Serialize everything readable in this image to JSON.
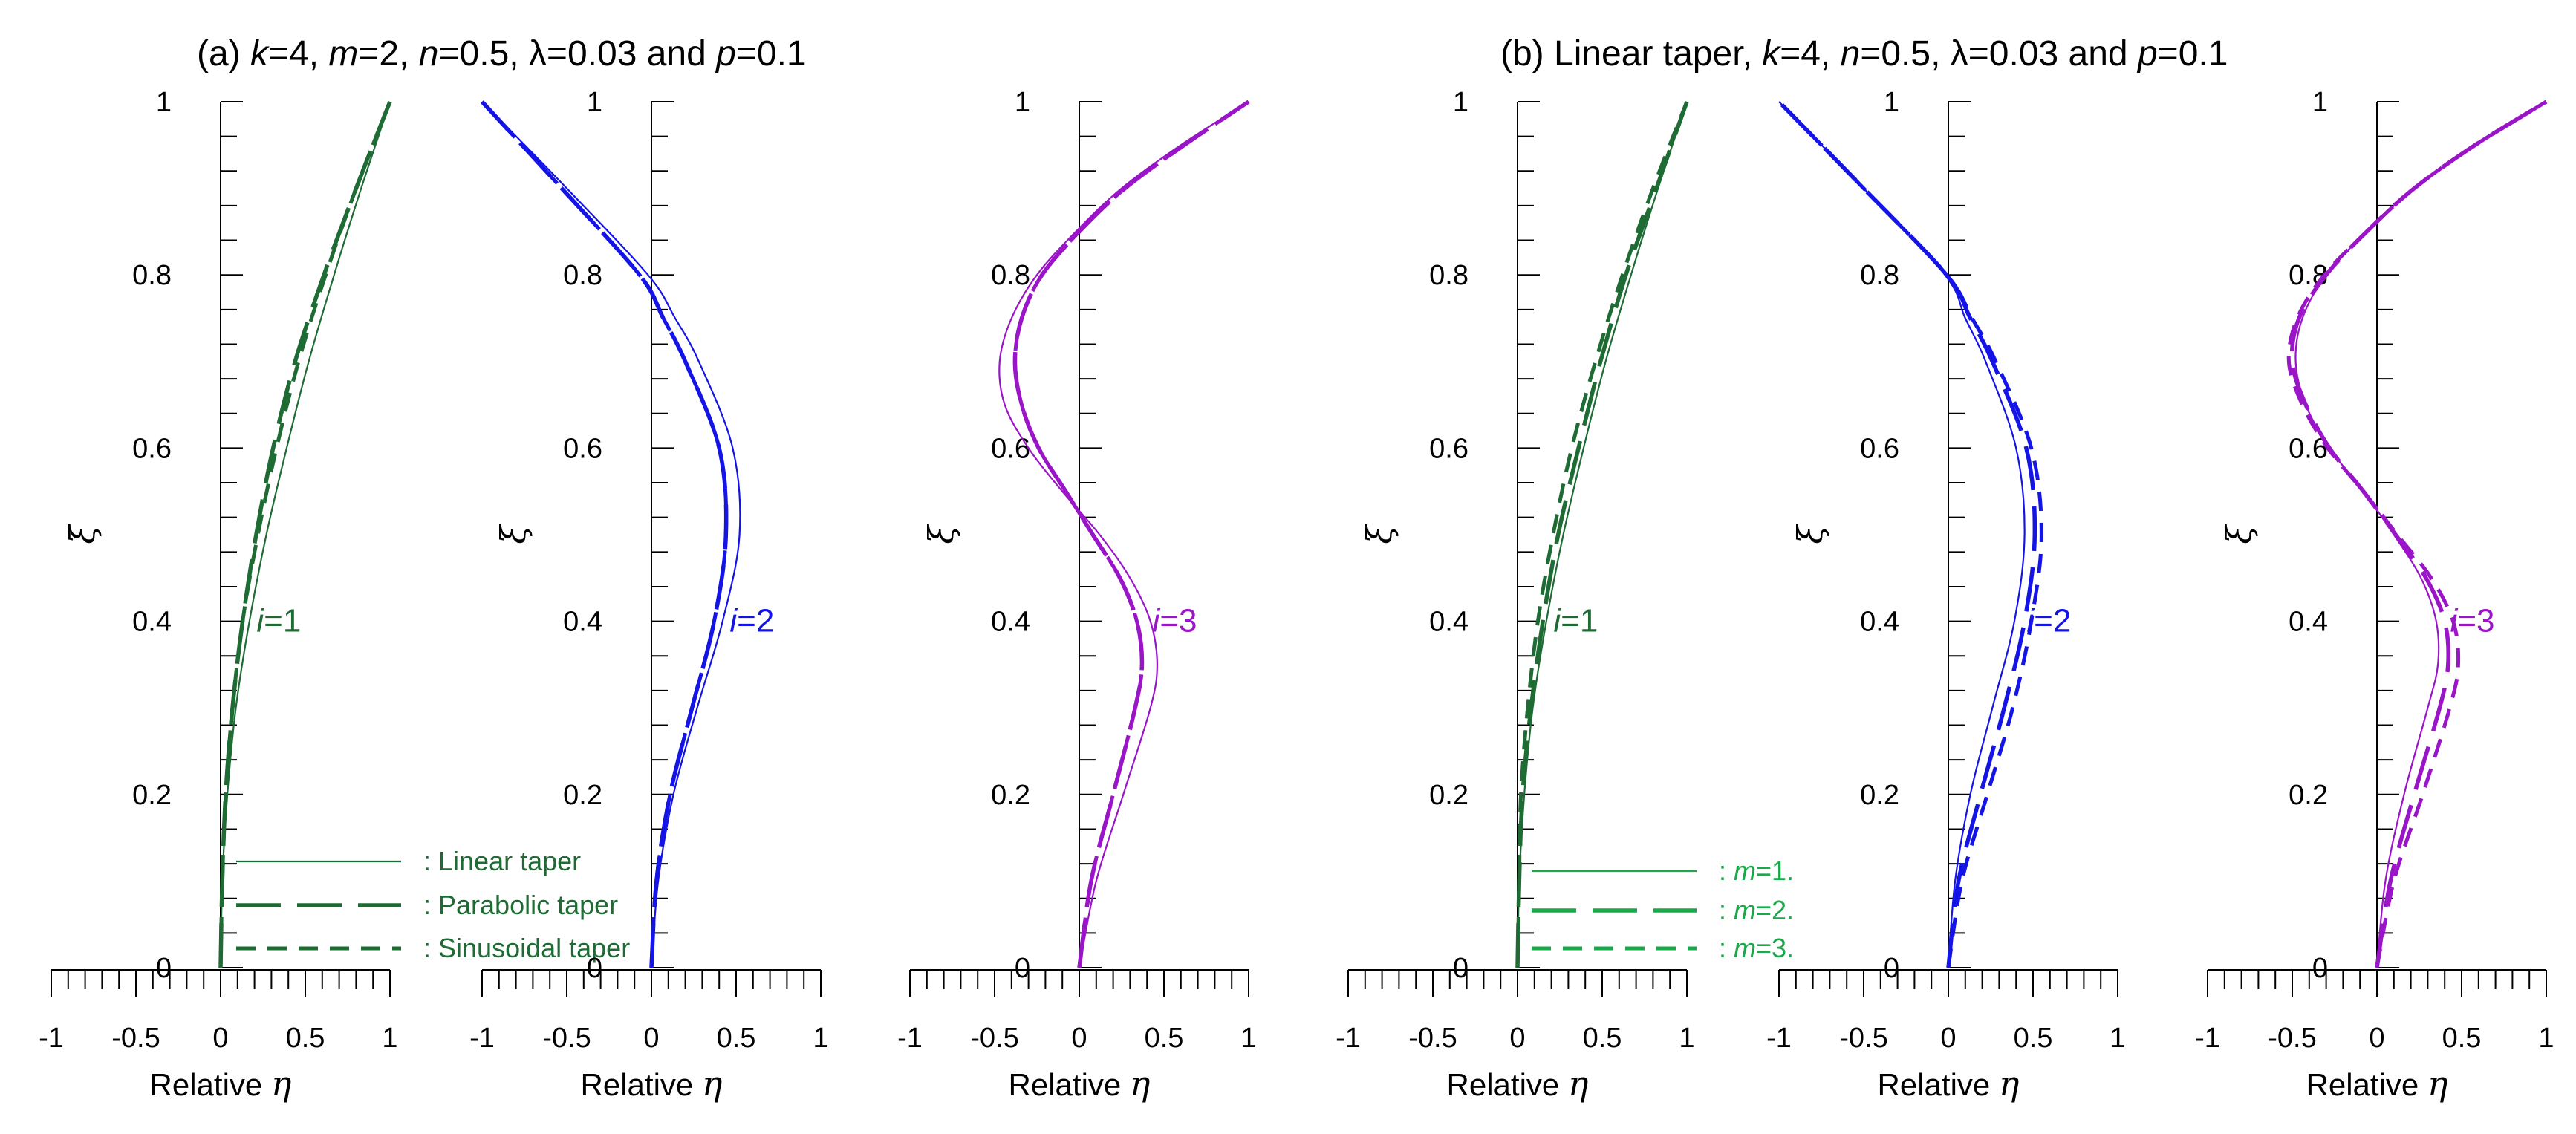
{
  "figure": {
    "title_a": "(a) k=4, m=2, n=0.5, λ=0.03 and p=0.1",
    "title_b": "(b) Linear taper, k=4, n=0.5, λ=0.03 and p=0.1"
  },
  "colors": {
    "mode1": "#1e6b34",
    "mode2": "#1414e6",
    "mode3": "#9a14c8",
    "legend_a_text": "#1e6b34",
    "legend_b_text": "#1aa84a"
  },
  "chart_data": [
    {
      "type": "line",
      "panel": "a",
      "mode_label": "i=1",
      "mode_color": "mode1",
      "xlabel": "Relative η",
      "ylabel": "ξ",
      "xlim": [
        -1,
        1
      ],
      "ylim": [
        0,
        1
      ],
      "x_ticks": [
        "-1",
        "-0.5",
        "0",
        "0.5",
        "1"
      ],
      "y_ticks": [
        "0",
        "0.2",
        "0.4",
        "0.6",
        "0.8",
        "1"
      ],
      "show_y_tick_labels": true,
      "label_anchor": [
        0.3,
        0.4
      ],
      "legend": [
        "Linear taper",
        "Parabolic taper",
        "Sinusoidal taper"
      ],
      "series": [
        {
          "name": "Linear taper",
          "style": "solid",
          "y": [
            0,
            0.1,
            0.2,
            0.3,
            0.4,
            0.5,
            0.6,
            0.7,
            0.8,
            0.9,
            1.0
          ],
          "x": [
            0,
            0.01,
            0.04,
            0.09,
            0.17,
            0.27,
            0.39,
            0.52,
            0.67,
            0.83,
            1.0
          ]
        },
        {
          "name": "Parabolic taper",
          "style": "longdash",
          "y": [
            0,
            0.1,
            0.2,
            0.3,
            0.4,
            0.5,
            0.6,
            0.7,
            0.8,
            0.9,
            1.0
          ],
          "x": [
            0,
            0.01,
            0.03,
            0.07,
            0.13,
            0.21,
            0.31,
            0.44,
            0.61,
            0.8,
            1.0
          ]
        },
        {
          "name": "Sinusoidal taper",
          "style": "shortdash",
          "y": [
            0,
            0.1,
            0.2,
            0.3,
            0.4,
            0.5,
            0.6,
            0.7,
            0.8,
            0.9,
            1.0
          ],
          "x": [
            0,
            0.01,
            0.03,
            0.07,
            0.13,
            0.22,
            0.33,
            0.46,
            0.62,
            0.8,
            1.0
          ]
        }
      ]
    },
    {
      "type": "line",
      "panel": "a",
      "mode_label": "i=2",
      "mode_color": "mode2",
      "xlabel": "Relative η",
      "ylabel": "ξ",
      "xlim": [
        -1,
        1
      ],
      "ylim": [
        0,
        1
      ],
      "x_ticks": [
        "-1",
        "-0.5",
        "0",
        "0.5",
        "1"
      ],
      "y_ticks": [
        "0",
        "0.2",
        "0.4",
        "0.6",
        "0.8",
        "1"
      ],
      "show_y_tick_labels": true,
      "label_anchor": [
        0.55,
        0.4
      ],
      "series": [
        {
          "name": "Linear taper",
          "style": "solid",
          "y": [
            0,
            0.1,
            0.2,
            0.3,
            0.4,
            0.5,
            0.6,
            0.7,
            0.75,
            0.8,
            0.9,
            1.0
          ],
          "x": [
            0,
            0.04,
            0.13,
            0.27,
            0.42,
            0.52,
            0.48,
            0.28,
            0.14,
            -0.02,
            -0.5,
            -1.0
          ]
        },
        {
          "name": "Parabolic taper",
          "style": "longdash",
          "y": [
            0,
            0.1,
            0.2,
            0.3,
            0.4,
            0.5,
            0.6,
            0.7,
            0.75,
            0.8,
            0.9,
            1.0
          ],
          "x": [
            0,
            0.03,
            0.11,
            0.24,
            0.37,
            0.44,
            0.4,
            0.2,
            0.07,
            -0.07,
            -0.53,
            -1.0
          ]
        },
        {
          "name": "Sinusoidal taper",
          "style": "shortdash",
          "y": [
            0,
            0.1,
            0.2,
            0.3,
            0.4,
            0.5,
            0.6,
            0.7,
            0.75,
            0.8,
            0.9,
            1.0
          ],
          "x": [
            0,
            0.03,
            0.11,
            0.24,
            0.37,
            0.44,
            0.4,
            0.2,
            0.07,
            -0.07,
            -0.53,
            -1.0
          ]
        }
      ]
    },
    {
      "type": "line",
      "panel": "a",
      "mode_label": "i=3",
      "mode_color": "mode3",
      "xlabel": "Relative η",
      "ylabel": "ξ",
      "xlim": [
        -1,
        1
      ],
      "ylim": [
        0,
        1
      ],
      "x_ticks": [
        "-1",
        "-0.5",
        "0",
        "0.5",
        "1"
      ],
      "y_ticks": [
        "0",
        "0.2",
        "0.4",
        "0.6",
        "0.8",
        "1"
      ],
      "show_y_tick_labels": true,
      "label_anchor": [
        0.52,
        0.4
      ],
      "series": [
        {
          "name": "Linear taper",
          "style": "solid",
          "y": [
            0,
            0.1,
            0.2,
            0.3,
            0.35,
            0.4,
            0.45,
            0.5,
            0.55,
            0.6,
            0.65,
            0.7,
            0.75,
            0.8,
            0.85,
            0.9,
            0.95,
            1.0
          ],
          "x": [
            0,
            0.1,
            0.26,
            0.42,
            0.46,
            0.42,
            0.3,
            0.12,
            -0.1,
            -0.3,
            -0.44,
            -0.47,
            -0.4,
            -0.25,
            -0.02,
            0.25,
            0.6,
            1.0
          ]
        },
        {
          "name": "Parabolic taper",
          "style": "longdash",
          "y": [
            0,
            0.1,
            0.2,
            0.3,
            0.35,
            0.4,
            0.45,
            0.5,
            0.55,
            0.6,
            0.65,
            0.7,
            0.75,
            0.8,
            0.85,
            0.9,
            0.95,
            1.0
          ],
          "x": [
            0,
            0.07,
            0.2,
            0.33,
            0.37,
            0.34,
            0.24,
            0.08,
            -0.08,
            -0.24,
            -0.34,
            -0.38,
            -0.34,
            -0.22,
            0.0,
            0.27,
            0.62,
            1.0
          ]
        },
        {
          "name": "Sinusoidal taper",
          "style": "shortdash",
          "y": [
            0,
            0.1,
            0.2,
            0.3,
            0.35,
            0.4,
            0.45,
            0.5,
            0.55,
            0.6,
            0.65,
            0.7,
            0.75,
            0.8,
            0.85,
            0.9,
            0.95,
            1.0
          ],
          "x": [
            0,
            0.07,
            0.2,
            0.33,
            0.37,
            0.34,
            0.24,
            0.08,
            -0.08,
            -0.24,
            -0.34,
            -0.38,
            -0.34,
            -0.22,
            0.0,
            0.27,
            0.62,
            1.0
          ]
        }
      ]
    },
    {
      "type": "line",
      "panel": "b",
      "mode_label": "i=1",
      "mode_color": "mode1",
      "xlabel": "Relative η",
      "ylabel": "ξ",
      "xlim": [
        -1,
        1
      ],
      "ylim": [
        0,
        1
      ],
      "x_ticks": [
        "-1",
        "-0.5",
        "0",
        "0.5",
        "1"
      ],
      "y_ticks": [
        "0",
        "0.2",
        "0.4",
        "0.6",
        "0.8",
        "1"
      ],
      "show_y_tick_labels": true,
      "label_anchor": [
        0.3,
        0.4
      ],
      "legend": [
        "m=1.",
        "m=2.",
        "m=3."
      ],
      "series": [
        {
          "name": "m=1.",
          "style": "solid",
          "y": [
            0,
            0.1,
            0.2,
            0.3,
            0.4,
            0.5,
            0.6,
            0.7,
            0.8,
            0.9,
            1.0
          ],
          "x": [
            0,
            0.01,
            0.04,
            0.09,
            0.17,
            0.27,
            0.39,
            0.52,
            0.67,
            0.83,
            1.0
          ]
        },
        {
          "name": "m=2.",
          "style": "longdash",
          "y": [
            0,
            0.1,
            0.2,
            0.3,
            0.4,
            0.5,
            0.6,
            0.7,
            0.8,
            0.9,
            1.0
          ],
          "x": [
            0,
            0.01,
            0.03,
            0.08,
            0.15,
            0.24,
            0.36,
            0.49,
            0.64,
            0.82,
            1.0
          ]
        },
        {
          "name": "m=3.",
          "style": "shortdash",
          "y": [
            0,
            0.1,
            0.2,
            0.3,
            0.4,
            0.5,
            0.6,
            0.7,
            0.8,
            0.9,
            1.0
          ],
          "x": [
            0,
            0.01,
            0.02,
            0.06,
            0.12,
            0.21,
            0.32,
            0.46,
            0.62,
            0.8,
            1.0
          ]
        }
      ]
    },
    {
      "type": "line",
      "panel": "b",
      "mode_label": "i=2",
      "mode_color": "mode2",
      "xlabel": "Relative η",
      "ylabel": "ξ",
      "xlim": [
        -1,
        1
      ],
      "ylim": [
        0,
        1
      ],
      "x_ticks": [
        "-1",
        "-0.5",
        "0",
        "0.5",
        "1"
      ],
      "y_ticks": [
        "0",
        "0.2",
        "0.4",
        "0.6",
        "0.8",
        "1"
      ],
      "show_y_tick_labels": true,
      "label_anchor": [
        0.55,
        0.4
      ],
      "series": [
        {
          "name": "m=1.",
          "style": "solid",
          "y": [
            0,
            0.1,
            0.2,
            0.3,
            0.4,
            0.5,
            0.6,
            0.7,
            0.75,
            0.8,
            0.9,
            1.0
          ],
          "x": [
            0,
            0.04,
            0.13,
            0.26,
            0.39,
            0.45,
            0.4,
            0.22,
            0.1,
            -0.02,
            -0.5,
            -1.0
          ]
        },
        {
          "name": "m=2.",
          "style": "longdash",
          "y": [
            0,
            0.1,
            0.2,
            0.3,
            0.4,
            0.5,
            0.6,
            0.7,
            0.75,
            0.8,
            0.9,
            1.0
          ],
          "x": [
            0,
            0.06,
            0.19,
            0.33,
            0.45,
            0.51,
            0.46,
            0.26,
            0.13,
            -0.01,
            -0.5,
            -1.0
          ]
        },
        {
          "name": "m=3.",
          "style": "shortdash",
          "y": [
            0,
            0.1,
            0.2,
            0.3,
            0.4,
            0.5,
            0.6,
            0.7,
            0.75,
            0.8,
            0.9,
            1.0
          ],
          "x": [
            0,
            0.08,
            0.23,
            0.38,
            0.49,
            0.55,
            0.49,
            0.28,
            0.14,
            -0.01,
            -0.5,
            -1.0
          ]
        }
      ]
    },
    {
      "type": "line",
      "panel": "b",
      "mode_label": "i=3",
      "mode_color": "mode3",
      "xlabel": "Relative η",
      "ylabel": "ξ",
      "xlim": [
        -1,
        1
      ],
      "ylim": [
        0,
        1
      ],
      "x_ticks": [
        "-1",
        "-0.5",
        "0",
        "0.5",
        "1"
      ],
      "y_ticks": [
        "0",
        "0.2",
        "0.4",
        "0.6",
        "0.8",
        "1"
      ],
      "show_y_tick_labels": true,
      "label_anchor": [
        0.52,
        0.4
      ],
      "series": [
        {
          "name": "m=1.",
          "style": "solid",
          "y": [
            0,
            0.1,
            0.2,
            0.3,
            0.35,
            0.4,
            0.45,
            0.5,
            0.55,
            0.6,
            0.65,
            0.7,
            0.75,
            0.8,
            0.85,
            0.9,
            0.95,
            1.0
          ],
          "x": [
            0,
            0.05,
            0.16,
            0.3,
            0.36,
            0.35,
            0.26,
            0.1,
            -0.08,
            -0.28,
            -0.42,
            -0.48,
            -0.44,
            -0.3,
            -0.06,
            0.22,
            0.58,
            1.0
          ]
        },
        {
          "name": "m=2.",
          "style": "longdash",
          "y": [
            0,
            0.1,
            0.2,
            0.3,
            0.35,
            0.4,
            0.45,
            0.5,
            0.55,
            0.6,
            0.65,
            0.7,
            0.75,
            0.8,
            0.85,
            0.9,
            0.95,
            1.0
          ],
          "x": [
            0,
            0.08,
            0.22,
            0.37,
            0.42,
            0.4,
            0.29,
            0.11,
            -0.08,
            -0.28,
            -0.42,
            -0.5,
            -0.46,
            -0.3,
            -0.06,
            0.22,
            0.58,
            1.0
          ]
        },
        {
          "name": "m=3.",
          "style": "shortdash",
          "y": [
            0,
            0.1,
            0.2,
            0.3,
            0.35,
            0.4,
            0.45,
            0.5,
            0.55,
            0.6,
            0.65,
            0.7,
            0.75,
            0.8,
            0.85,
            0.9,
            0.95,
            1.0
          ],
          "x": [
            0,
            0.1,
            0.27,
            0.43,
            0.48,
            0.45,
            0.32,
            0.12,
            -0.08,
            -0.29,
            -0.44,
            -0.52,
            -0.47,
            -0.31,
            -0.06,
            0.22,
            0.58,
            1.0
          ]
        }
      ]
    }
  ]
}
